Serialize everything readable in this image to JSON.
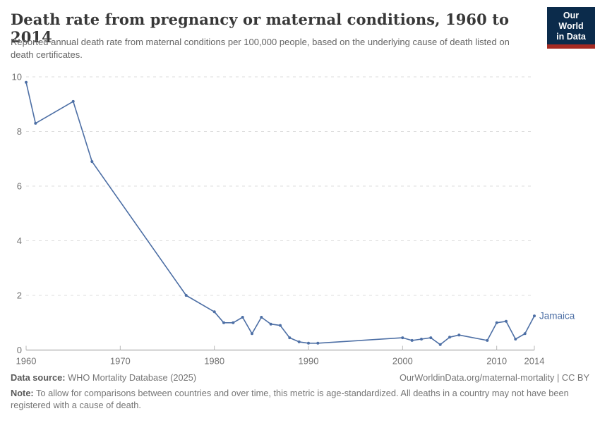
{
  "header": {
    "title": "Death rate from pregnancy or maternal conditions, 1960 to 2014",
    "subtitle": "Reported annual death rate from maternal conditions per 100,000 people, based on the underlying cause of death listed on death certificates.",
    "logo_line1": "Our World",
    "logo_line2": "in Data"
  },
  "chart_data": {
    "type": "line",
    "title": "Death rate from pregnancy or maternal conditions, 1960 to 2014",
    "entity": "Jamaica",
    "unit": "deaths per 100,000 people",
    "xlim": [
      1960,
      2014
    ],
    "ylim": [
      0,
      10
    ],
    "x_ticks": [
      1960,
      1970,
      1980,
      1990,
      2000,
      2010,
      2014
    ],
    "y_ticks": [
      0,
      2,
      4,
      6,
      8,
      10
    ],
    "grid": "horizontal-dashed",
    "legend_position": "line-end-label",
    "series": [
      {
        "name": "Jamaica",
        "points": [
          [
            1960,
            9.8
          ],
          [
            1961,
            8.3
          ],
          [
            1965,
            9.1
          ],
          [
            1967,
            6.9
          ],
          [
            1977,
            2.0
          ],
          [
            1980,
            1.4
          ],
          [
            1981,
            1.0
          ],
          [
            1982,
            1.0
          ],
          [
            1983,
            1.2
          ],
          [
            1984,
            0.6
          ],
          [
            1985,
            1.2
          ],
          [
            1986,
            0.95
          ],
          [
            1987,
            0.9
          ],
          [
            1988,
            0.45
          ],
          [
            1989,
            0.3
          ],
          [
            1990,
            0.25
          ],
          [
            1991,
            0.25
          ],
          [
            2000,
            0.45
          ],
          [
            2001,
            0.35
          ],
          [
            2002,
            0.4
          ],
          [
            2003,
            0.45
          ],
          [
            2004,
            0.2
          ],
          [
            2005,
            0.47
          ],
          [
            2006,
            0.55
          ],
          [
            2009,
            0.35
          ],
          [
            2010,
            1.0
          ],
          [
            2011,
            1.05
          ],
          [
            2012,
            0.4
          ],
          [
            2013,
            0.6
          ],
          [
            2014,
            1.25
          ]
        ]
      }
    ]
  },
  "footer": {
    "data_source_label": "Data source:",
    "data_source_value": "WHO Mortality Database (2025)",
    "link_text": "OurWorldinData.org/maternal-mortality | CC BY",
    "note_label": "Note:",
    "note_text": "To allow for comparisons between countries and over time, this metric is age-standardized. All deaths in a country may not have been registered with a cause of death."
  },
  "colors": {
    "line": "#4D6FA5",
    "entity_label": "#4D6FA5",
    "grid": "#DDDDDD",
    "axis": "#8F8F8F",
    "tick_mark": "#B8B8B8",
    "tick_text": "#737373",
    "title": "#383838",
    "subtitle": "#646464",
    "footer_text": "#757575",
    "footer_bold": "#5A5A5A",
    "logo_bg": "#0B2B4B",
    "logo_red": "#A52A22",
    "background": "#FFFFFF"
  }
}
